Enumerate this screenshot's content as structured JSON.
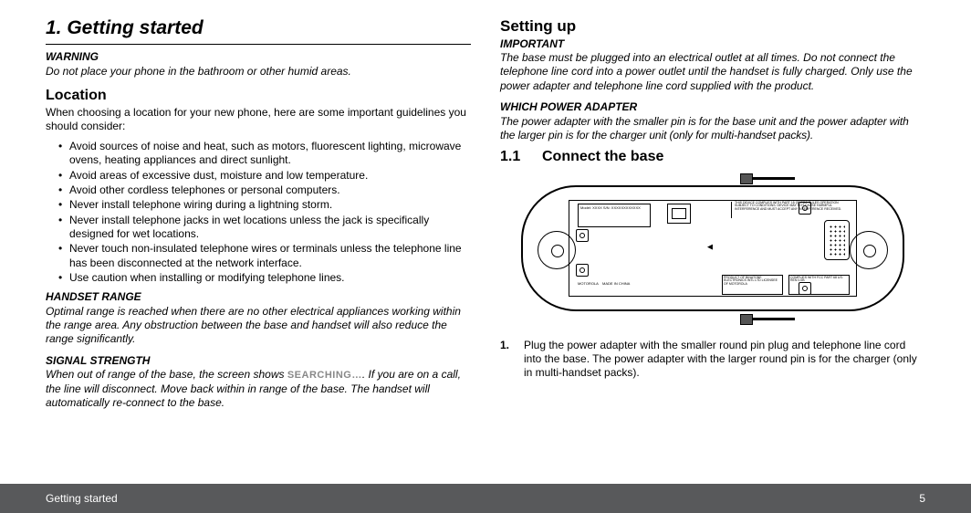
{
  "left": {
    "h1": "1. Getting started",
    "warning_head": "WARNING",
    "warning_body": "Do not place your phone in the bathroom or other humid areas.",
    "location_head": "Location",
    "location_body": "When choosing a location for your new phone, here are some important guidelines you should consider:",
    "bullets": [
      "Avoid sources of noise and heat, such as motors, fluorescent lighting, microwave ovens, heating appliances and direct sunlight.",
      "Avoid areas of excessive dust, moisture and low temperature.",
      "Avoid other cordless telephones or personal computers.",
      "Never install telephone wiring during a lightning storm.",
      "Never install telephone jacks in wet locations unless the jack is specifically designed for wet locations.",
      "Never touch non-insulated telephone wires or terminals unless the telephone line has been disconnected at the network interface.",
      "Use caution when installing or modifying telephone lines."
    ],
    "range_head": "HANDSET RANGE",
    "range_body": "Optimal range is reached when there are no other electrical appliances working within the range area. Any obstruction between the base and handset will also reduce the range significantly.",
    "signal_head": "SIGNAL STRENGTH",
    "signal_pre": "When out of range of the base, the screen shows ",
    "signal_kw": "SEARCHING…",
    "signal_post": ". If you are on a call, the line will disconnect. Move back within in range of the base. The handset will automatically re-connect to the base."
  },
  "right": {
    "setup_head": "Setting up",
    "important_head": "IMPORTANT",
    "important_body": "The base must be plugged into an electrical outlet at all times. Do not connect the telephone line cord into a power outlet until the handset is fully charged. Only use the power adapter and telephone line cord supplied with the product.",
    "which_head": "WHICH POWER ADAPTER",
    "which_body": "The power adapter with the smaller pin is for the base unit and the power adapter with the larger pin is for the charger unit (only for multi-handset packs).",
    "connect_num": "1.1",
    "connect_title": "Connect the base",
    "diagram_label": "Model: XXXX\nS/N: XXXXXXXXXXXX",
    "step1_n": "1.",
    "step1_text": "Plug the power adapter with the smaller round pin plug and telephone line cord into the base. The power adapter with the larger round pin is for the charger (only in multi-handset packs)."
  },
  "footer": {
    "title": "Getting started",
    "page": "5"
  },
  "colors": {
    "footer_bg": "#58595b",
    "text": "#000000",
    "searching": "#888888"
  }
}
